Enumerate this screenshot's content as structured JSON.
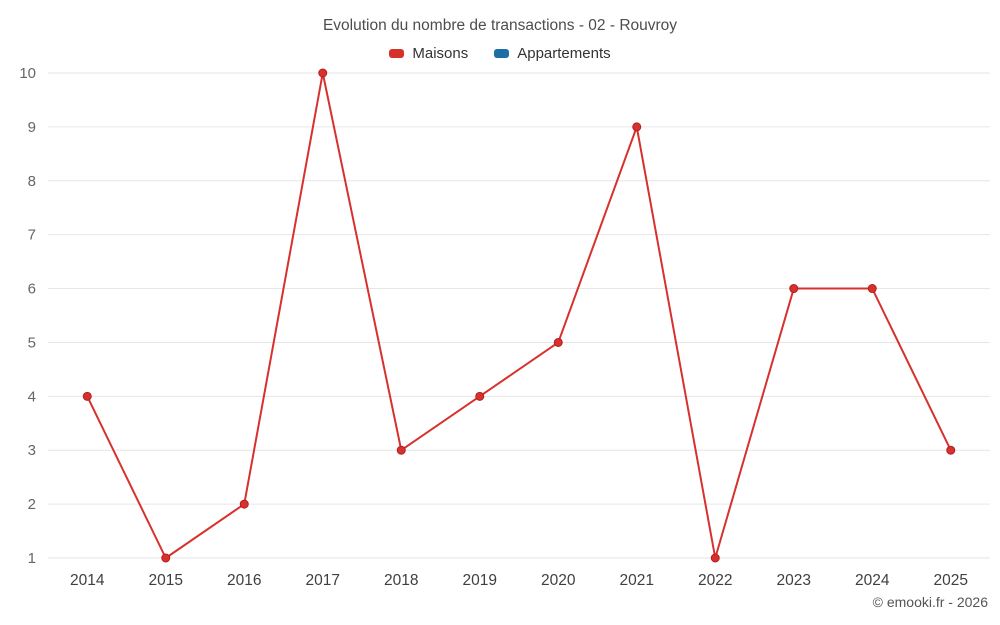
{
  "chart_data": {
    "type": "line",
    "title": "Evolution du nombre de transactions - 02 - Rouvroy",
    "categories": [
      "2014",
      "2015",
      "2016",
      "2017",
      "2018",
      "2019",
      "2020",
      "2021",
      "2022",
      "2023",
      "2024",
      "2025"
    ],
    "series": [
      {
        "name": "Maisons",
        "color": "#d7312e",
        "marker_stroke": "#b0201f",
        "values": [
          4,
          1,
          2,
          10,
          3,
          4,
          5,
          9,
          1,
          6,
          6,
          3
        ]
      },
      {
        "name": "Appartements",
        "color": "#1c6ea4",
        "marker_stroke": "#155a87",
        "values": []
      }
    ],
    "ylim": [
      1,
      10
    ],
    "yticks": [
      1,
      2,
      3,
      4,
      5,
      6,
      7,
      8,
      9,
      10
    ],
    "grid": "horizontal",
    "grid_color": "#e6e6e6",
    "y_tick_color": "#666666",
    "x_tick_color": "#3f3f3f",
    "legend_position": "top"
  },
  "footer": {
    "copyright": "© emooki.fr - 2026"
  }
}
